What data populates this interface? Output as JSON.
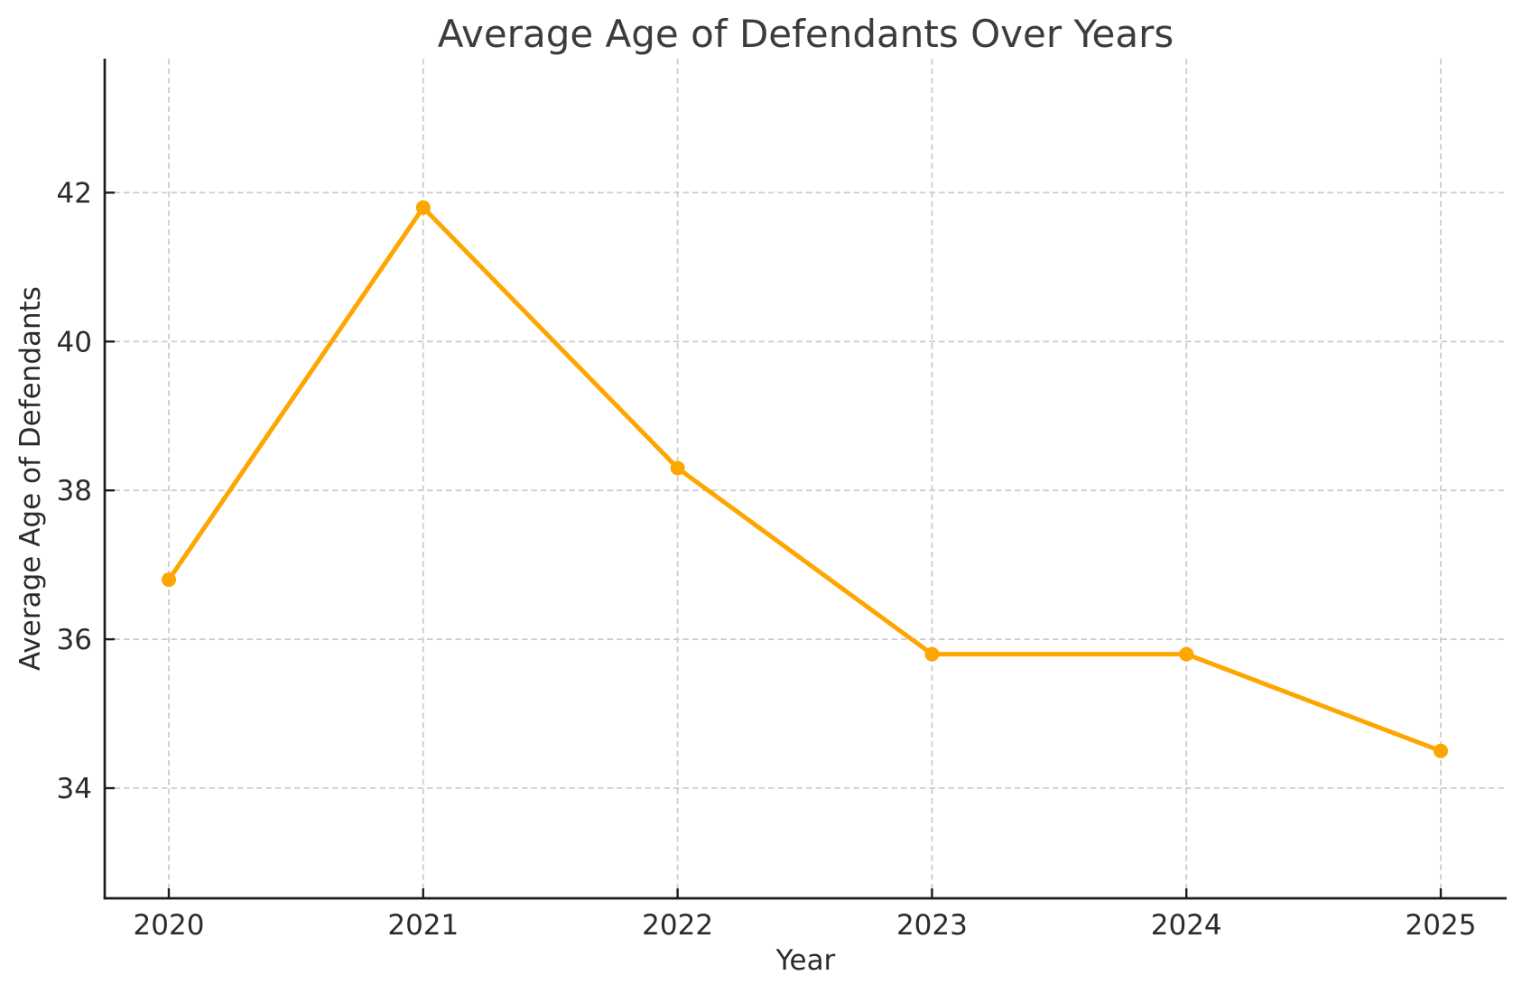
{
  "figure": {
    "background_color": "#ffffff"
  },
  "chart_data": {
    "type": "line",
    "title": "Average Age of Defendants Over Years",
    "xlabel": "Year",
    "ylabel": "Average Age of Defendants",
    "x": [
      2020,
      2021,
      2022,
      2023,
      2024,
      2025
    ],
    "series": [
      {
        "name": "Average Age of Defendants",
        "values": [
          36.8,
          41.8,
          38.3,
          35.8,
          35.8,
          34.5
        ]
      }
    ],
    "xticks": [
      "2020",
      "2021",
      "2022",
      "2023",
      "2024",
      "2025"
    ],
    "yticks": [
      "34",
      "36",
      "38",
      "40",
      "42"
    ],
    "ytick_values": [
      34,
      36,
      38,
      40,
      42
    ],
    "xtick_values": [
      2020,
      2021,
      2022,
      2023,
      2024,
      2025
    ],
    "xlim": [
      2019.748,
      2025.259
    ],
    "ylim": [
      32.52,
      43.8
    ],
    "grid": true,
    "grid_style": "dashed",
    "legend": false,
    "marker": "circle",
    "colors": {
      "line": "#FFA500",
      "marker": "#FFA500",
      "grid": "#cdcdcd",
      "spine": "#1c1c1c",
      "tick_text": "#2b2b2b",
      "title_text": "#3c3c3c"
    }
  }
}
